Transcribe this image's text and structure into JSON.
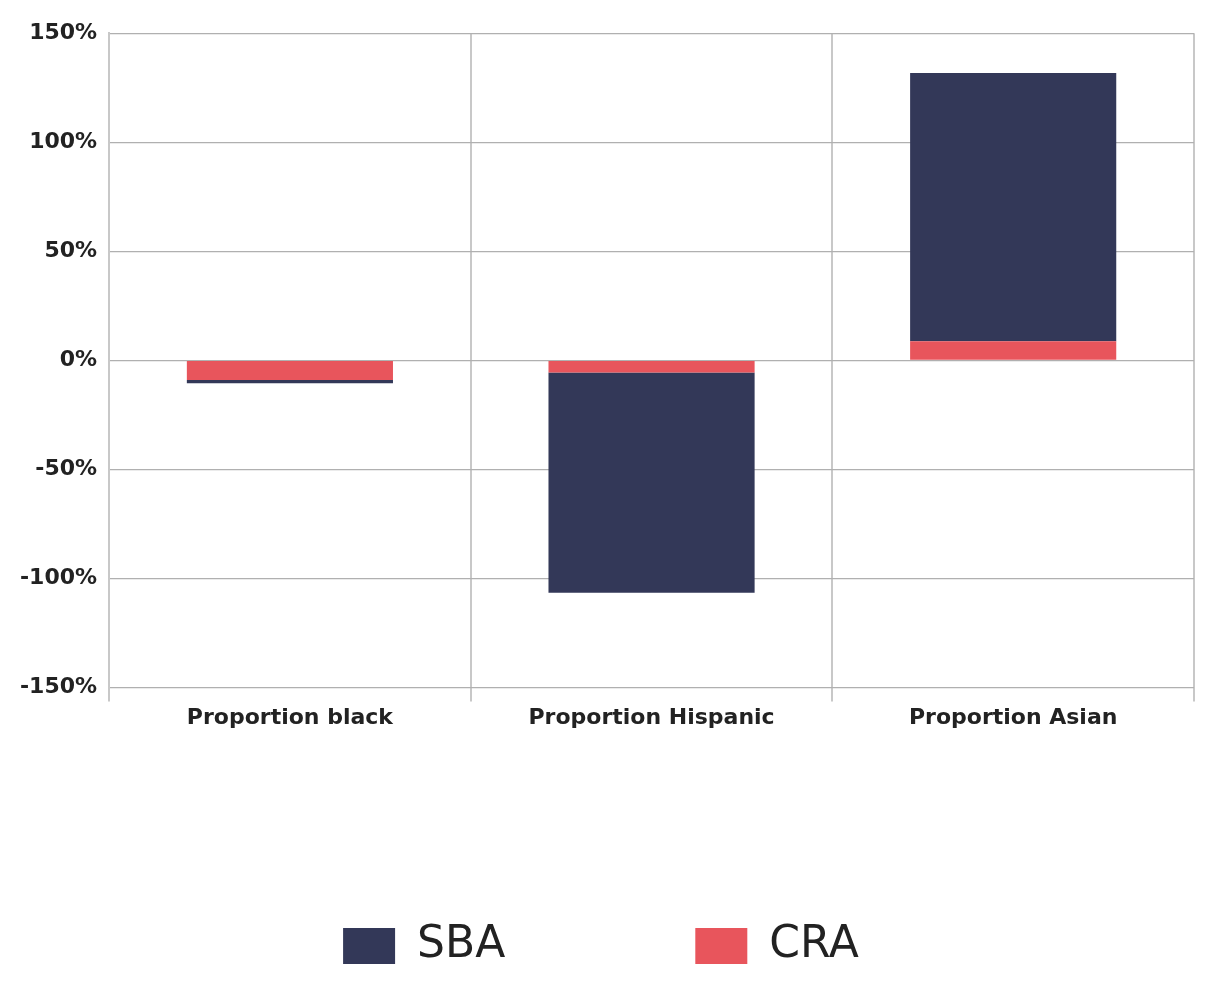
{
  "chart_data": {
    "type": "bar",
    "stacked": true,
    "categories": [
      "Proportion black",
      "Proportion Hispanic",
      "Proportion Asian"
    ],
    "series": [
      {
        "name": "CRA",
        "color": "#e8555c",
        "values": [
          -9,
          -5.5,
          8.8
        ]
      },
      {
        "name": "SBA",
        "color": "#333858",
        "values": [
          -1.5,
          -101,
          123
        ]
      }
    ],
    "ylim": [
      -150,
      150
    ],
    "yticks": [
      {
        "value": -150,
        "label": "-150%"
      },
      {
        "value": -100,
        "label": "-100%"
      },
      {
        "value": -50,
        "label": "-50%"
      },
      {
        "value": 0,
        "label": "0%"
      },
      {
        "value": 50,
        "label": "50%"
      },
      {
        "value": 100,
        "label": "100%"
      },
      {
        "value": 150,
        "label": "150%"
      }
    ],
    "grid": true,
    "legend": "bottom"
  }
}
